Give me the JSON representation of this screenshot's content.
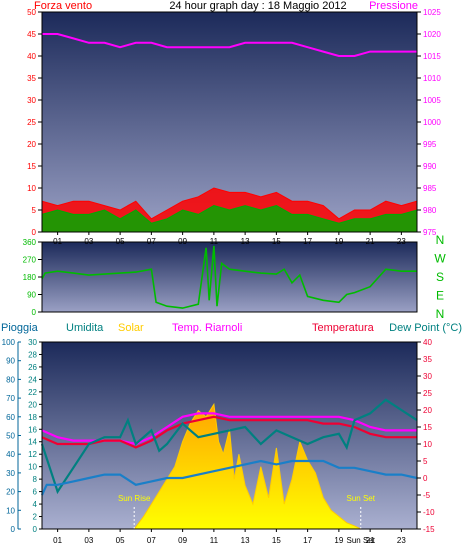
{
  "title": "24 hour graph day : 18 Maggio 2012",
  "colors": {
    "wind": "#ff0000",
    "gust": "#00aa00",
    "pressure": "#ff00ff",
    "direction": "#00bb00",
    "rain": "#006699",
    "humidity": "#008080",
    "solar": "#ffcc00",
    "feels": "#ff00ff",
    "temp": "#ee0033",
    "dew": "#1a7fc8",
    "frame": "#000000"
  },
  "chart_data": [
    {
      "type": "line",
      "id": "wind-pressure",
      "title": "24 hour graph day : 18 Maggio 2012",
      "x_ticks": [
        "01",
        "03",
        "05",
        "07",
        "09",
        "11",
        "13",
        "15",
        "17",
        "19",
        "21",
        "23"
      ],
      "y_left": {
        "label": "Forza vento",
        "min": 0,
        "max": 50,
        "ticks": [
          0,
          5,
          10,
          15,
          20,
          25,
          30,
          35,
          40,
          45,
          50
        ]
      },
      "y_right": {
        "label": "Pressione",
        "min": 975,
        "max": 1025,
        "ticks": [
          975,
          980,
          985,
          990,
          995,
          1000,
          1005,
          1010,
          1015,
          1020,
          1025
        ]
      },
      "series": [
        {
          "name": "Pressione",
          "axis": "right",
          "x": [
            0,
            1,
            2,
            3,
            4,
            5,
            6,
            7,
            8,
            9,
            10,
            11,
            12,
            13,
            14,
            15,
            16,
            17,
            18,
            19,
            19.5,
            20,
            21,
            22,
            23,
            24
          ],
          "y": [
            1020,
            1020,
            1019,
            1018,
            1018,
            1017,
            1018,
            1018,
            1017,
            1017,
            1017,
            1017,
            1017,
            1018,
            1018,
            1018,
            1018,
            1017,
            1016,
            1015,
            1015,
            1015,
            1016,
            1016,
            1016,
            1016
          ]
        },
        {
          "name": "",
          "axis": "left",
          "x": [
            0,
            1,
            2,
            3,
            4,
            5,
            6,
            7,
            8,
            9,
            10,
            11,
            12,
            13,
            14,
            15,
            16,
            17,
            18,
            19,
            20,
            21,
            22,
            23,
            24
          ],
          "y": [
            4,
            5,
            4,
            4,
            5,
            3,
            5,
            2,
            3,
            5,
            4,
            6,
            5,
            6,
            5,
            6,
            4,
            4,
            3,
            2,
            3,
            3,
            4,
            4,
            5
          ]
        },
        {
          "name": "",
          "axis": "left",
          "x": [
            0,
            1,
            2,
            3,
            4,
            5,
            6,
            7,
            8,
            9,
            10,
            11,
            12,
            13,
            14,
            15,
            16,
            17,
            18,
            19,
            20,
            21,
            22,
            23,
            24
          ],
          "y": [
            7,
            6,
            7,
            7,
            6,
            5,
            7,
            3,
            5,
            7,
            8,
            10,
            9,
            9,
            8,
            9,
            7,
            7,
            6,
            3,
            5,
            5,
            7,
            6,
            7
          ]
        }
      ]
    },
    {
      "type": "line",
      "id": "wind-direction",
      "y_left": {
        "min": 0,
        "max": 360,
        "ticks": [
          0,
          90,
          180,
          270,
          360
        ]
      },
      "y_right_labels": [
        "N",
        "W",
        "S",
        "E",
        "N"
      ],
      "series": [
        {
          "name": "",
          "axis": "left",
          "x": [
            0,
            0.2,
            1,
            2,
            3,
            4,
            5,
            6,
            7,
            7.3,
            8,
            9,
            10,
            10.5,
            10.7,
            11,
            11.2,
            11.5,
            12,
            12.5,
            13,
            14,
            15,
            15.5,
            16,
            16.5,
            17,
            18,
            19,
            19.5,
            20,
            21,
            22,
            23,
            24
          ],
          "y": [
            170,
            200,
            210,
            200,
            190,
            195,
            200,
            205,
            220,
            50,
            30,
            20,
            40,
            330,
            60,
            340,
            30,
            250,
            220,
            215,
            210,
            200,
            195,
            220,
            150,
            190,
            80,
            60,
            50,
            90,
            100,
            130,
            220,
            210,
            210
          ]
        }
      ]
    },
    {
      "type": "line",
      "id": "rain-humidity-solar-temp",
      "x_ticks": [
        "01",
        "03",
        "05",
        "07",
        "09",
        "11",
        "13",
        "15",
        "17",
        "19",
        "21",
        "23"
      ],
      "y_rain": {
        "label": "Pioggia",
        "min": 0,
        "max": 100,
        "ticks": [
          0,
          10,
          20,
          30,
          40,
          50,
          60,
          70,
          80,
          90,
          100
        ]
      },
      "y_humidity": {
        "label": "Umidita",
        "min": 0,
        "max": 30,
        "ticks": [
          0,
          2,
          4,
          6,
          8,
          10,
          12,
          14,
          16,
          18,
          20,
          22,
          24,
          26,
          28,
          30
        ]
      },
      "y_temp": {
        "label": "Temperatura",
        "min": -15,
        "max": 40,
        "ticks": [
          -15,
          -10,
          -5,
          0,
          5,
          10,
          15,
          20,
          25,
          30,
          35,
          40
        ]
      },
      "legend": [
        "Pioggia",
        "Umidita",
        "Solar",
        "Temp. Riarnoli",
        "Temperatura",
        "Dew Point (°C)"
      ],
      "annotations": [
        {
          "text": "Sun Rise",
          "x": 5.9
        },
        {
          "text": "Sun Set",
          "x": 20.4
        }
      ],
      "x_extra_label": "Sun Set",
      "series": [
        {
          "name": "Solar",
          "axis": "humidity",
          "x": [
            0,
            5.9,
            6.5,
            7,
            7.5,
            8,
            8.5,
            9,
            9.5,
            10,
            10.5,
            11,
            11.3,
            11.6,
            12,
            12.3,
            12.6,
            13,
            13.5,
            14,
            14.5,
            15,
            15.5,
            16,
            16.5,
            17,
            17.5,
            18,
            18.5,
            19,
            19.5,
            20,
            20.4,
            24
          ],
          "y": [
            0,
            0,
            2,
            4,
            6,
            8,
            10,
            14,
            17,
            19,
            18,
            20,
            14,
            12,
            16,
            8,
            12,
            7,
            4,
            10,
            5,
            13,
            4,
            8,
            14,
            11,
            9,
            5,
            3,
            2,
            1,
            0.5,
            0,
            0
          ]
        },
        {
          "name": "Temp. Riarnoli",
          "axis": "temp",
          "x": [
            0,
            1,
            2,
            3,
            4,
            5,
            6,
            7,
            8,
            9,
            10,
            11,
            12,
            13,
            14,
            15,
            16,
            17,
            18,
            19,
            20,
            21,
            22,
            23,
            24
          ],
          "y": [
            14,
            12,
            11,
            11,
            11,
            11,
            10,
            12,
            15,
            18,
            19,
            19,
            18,
            18,
            18,
            18,
            18,
            18,
            18,
            18,
            17,
            15,
            14,
            14,
            14
          ]
        },
        {
          "name": "Temperatura",
          "axis": "temp",
          "x": [
            0,
            1,
            2,
            3,
            4,
            5,
            6,
            7,
            8,
            9,
            10,
            11,
            12,
            13,
            14,
            15,
            16,
            17,
            18,
            19,
            20,
            21,
            22,
            23,
            24
          ],
          "y": [
            12,
            10,
            10,
            10,
            11,
            11,
            9,
            11,
            14,
            16,
            17,
            18,
            17,
            17,
            17,
            17,
            17,
            17,
            16,
            16,
            15,
            13,
            12,
            12,
            12
          ]
        },
        {
          "name": "Umidita",
          "axis": "temp",
          "x": [
            0,
            0.5,
            1,
            2,
            3,
            4,
            5,
            5.5,
            6,
            7,
            7.5,
            8,
            9,
            9.5,
            10,
            11,
            12,
            13,
            14,
            15,
            16,
            17,
            18,
            19,
            19.5,
            20,
            21,
            22,
            23,
            24
          ],
          "y": [
            10,
            3,
            -4,
            3,
            10,
            12,
            12,
            17,
            10,
            14,
            8,
            10,
            16,
            14,
            12,
            13,
            14,
            15,
            10,
            14,
            12,
            10,
            12,
            13,
            9,
            17,
            19,
            23,
            20,
            17
          ]
        },
        {
          "name": "Dew Point (°C)",
          "axis": "temp",
          "x": [
            0,
            0.3,
            1,
            2,
            3,
            4,
            5,
            6,
            7,
            8,
            9,
            10,
            11,
            12,
            13,
            14,
            15,
            16,
            17,
            18,
            19,
            20,
            21,
            22,
            23,
            24
          ],
          "y": [
            -5,
            -2,
            -2,
            -1,
            0,
            1,
            1,
            -2,
            -1,
            0,
            0,
            1,
            2,
            3,
            4,
            5,
            4,
            5,
            5,
            5,
            3,
            3,
            2,
            1,
            1,
            0
          ]
        }
      ]
    }
  ]
}
